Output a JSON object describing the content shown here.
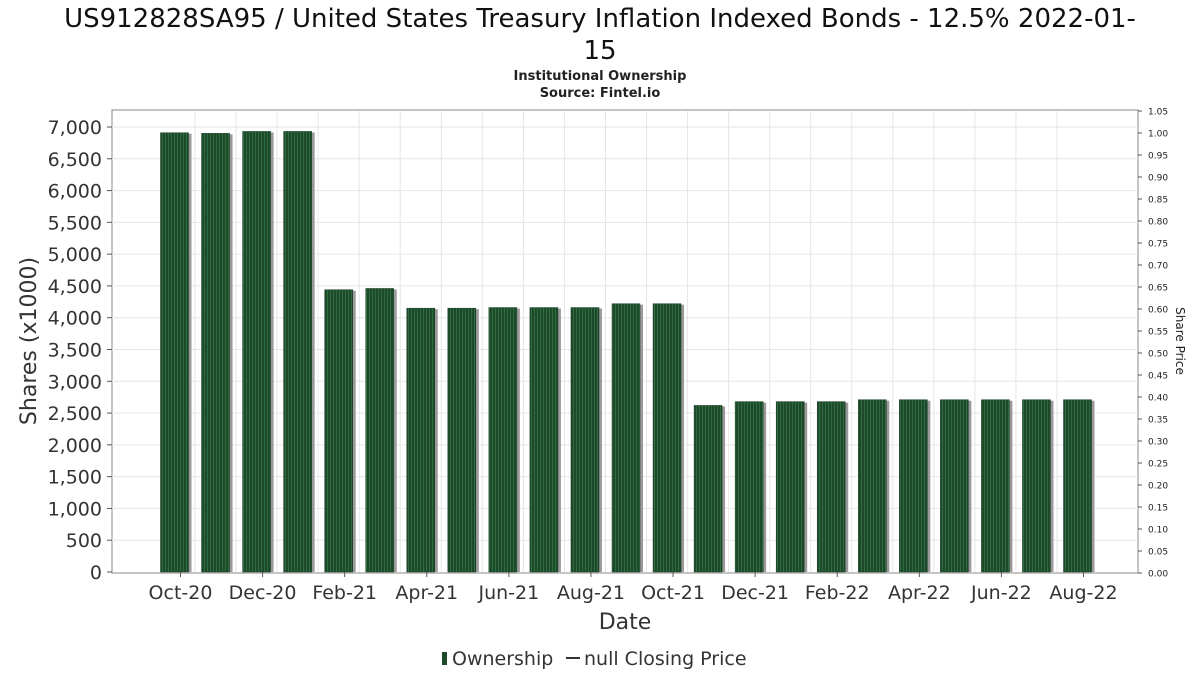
{
  "chart_data": {
    "type": "bar",
    "title": "US912828SA95 / United States Treasury Inflation Indexed Bonds - 12.5% 2022-01-",
    "title_line2": "15",
    "subtitle": "Institutional Ownership",
    "source": "Source: Fintel.io",
    "xlabel": "Date",
    "ylabel": "Shares (x1000)",
    "y2label": "Share Price",
    "ylim": [
      0,
      7300
    ],
    "y_ticks": [
      0,
      500,
      1000,
      1500,
      2000,
      2500,
      3000,
      3500,
      4000,
      4500,
      5000,
      5500,
      6000,
      6500,
      7000
    ],
    "y_tick_labels": [
      "0",
      "500",
      "1,000",
      "1,500",
      "2,000",
      "2,500",
      "3,000",
      "3,500",
      "4,000",
      "4,500",
      "5,000",
      "5,500",
      "6,000",
      "6,500",
      "7,000"
    ],
    "y2lim": [
      0,
      1.05
    ],
    "y2_tick_labels": [
      "0.00",
      "0.05",
      "0.10",
      "0.15",
      "0.20",
      "0.25",
      "0.30",
      "0.35",
      "0.40",
      "0.45",
      "0.50",
      "0.55",
      "0.60",
      "0.65",
      "0.70",
      "0.75",
      "0.80",
      "0.85",
      "0.90",
      "0.95",
      "1.00",
      "1.05"
    ],
    "x_tick_labels": [
      "Oct-20",
      "Dec-20",
      "Feb-21",
      "Apr-21",
      "Jun-21",
      "Aug-21",
      "Oct-21",
      "Dec-21",
      "Feb-22",
      "Apr-22",
      "Jun-22",
      "Aug-22"
    ],
    "grid": true,
    "legend_position": "bottom",
    "series": [
      {
        "name": "Ownership",
        "color": "#1e4a2c",
        "values": [
          6910,
          6900,
          6930,
          6930,
          4440,
          4460,
          4150,
          4150,
          4160,
          4160,
          4160,
          4220,
          4220,
          2620,
          2680,
          2680,
          2680,
          2710,
          2710,
          2710,
          2710,
          2710,
          2710
        ]
      }
    ],
    "legend": {
      "ownership_label": "Ownership",
      "price_label": "null Closing Price"
    },
    "colors": {
      "bar": "#1e4a2c",
      "bar_stripe": "#2f6b3f",
      "bar_shadow": "#9a9a9a",
      "grid": "#e6e6e6",
      "axis": "#888888"
    }
  }
}
